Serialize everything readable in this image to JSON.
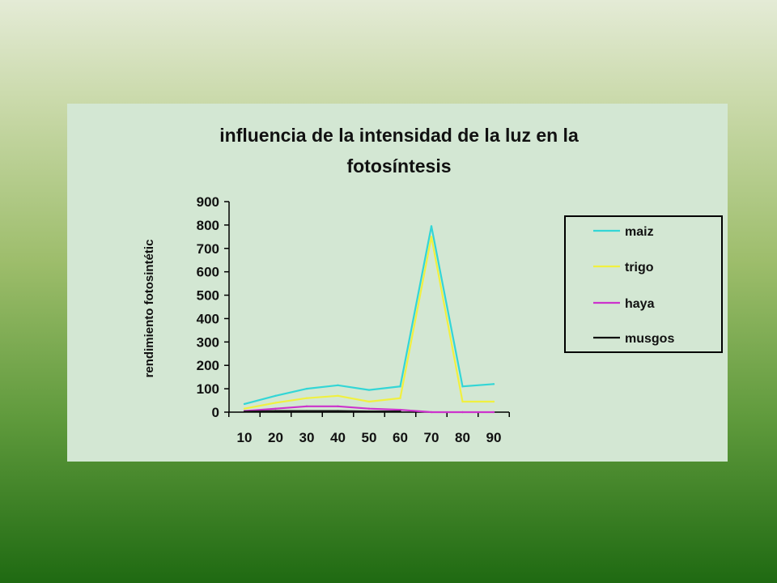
{
  "chart_data": {
    "type": "line",
    "title": "influencia de la intensidad de la luz en la fotosíntesis",
    "title_lines": [
      "influencia de la intensidad de la luz en la",
      "fotosíntesis"
    ],
    "xlabel": "",
    "ylabel": "rendimiento fotosintétic",
    "categories": [
      "10",
      "20",
      "30",
      "40",
      "50",
      "60",
      "70",
      "80",
      "90"
    ],
    "ylim": [
      0,
      900
    ],
    "yticks": [
      0,
      100,
      200,
      300,
      400,
      500,
      600,
      700,
      800,
      900
    ],
    "grid": false,
    "legend_position": "right",
    "series": [
      {
        "name": "maiz",
        "color": "#33d6d6",
        "values": [
          35,
          70,
          100,
          115,
          95,
          110,
          795,
          110,
          120
        ]
      },
      {
        "name": "trigo",
        "color": "#f0f040",
        "values": [
          15,
          40,
          60,
          70,
          45,
          60,
          750,
          45,
          45
        ]
      },
      {
        "name": "haya",
        "color": "#cc33cc",
        "values": [
          5,
          15,
          25,
          25,
          15,
          10,
          0,
          0,
          0
        ]
      },
      {
        "name": "musgos",
        "color": "#111111",
        "values": [
          2,
          5,
          5,
          5,
          3,
          3,
          null,
          null,
          null
        ]
      }
    ]
  }
}
